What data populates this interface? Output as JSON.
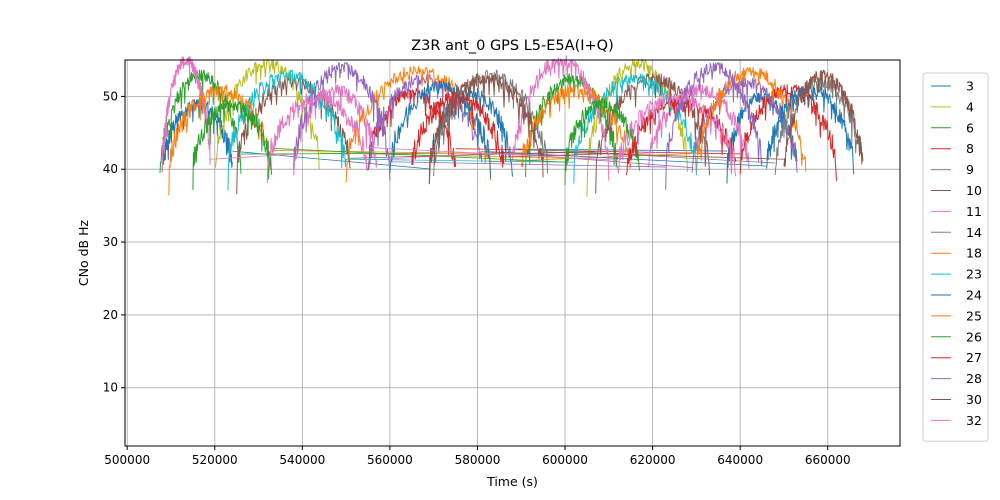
{
  "chart_data": {
    "type": "line",
    "title": "Z3R ant_0 GPS L5-E5A(I+Q)",
    "xlabel": "Time (s)",
    "ylabel": "CNo dB Hz",
    "xlim": [
      499500,
      676500
    ],
    "ylim": [
      2,
      55
    ],
    "xticks": [
      500000,
      520000,
      540000,
      560000,
      580000,
      600000,
      620000,
      640000,
      660000
    ],
    "yticks": [
      10,
      20,
      30,
      40,
      50
    ],
    "grid": true,
    "legend_position": "outside-right",
    "series": [
      {
        "name": "3",
        "color": "#1f77b4",
        "passes": [
          [
            508000,
            524000,
            49
          ],
          [
            569000,
            588000,
            50.5
          ],
          [
            637000,
            653000,
            50
          ]
        ]
      },
      {
        "name": "4",
        "color": "#bcbd22",
        "passes": [
          [
            520000,
            544000,
            54.5
          ],
          [
            605000,
            628000,
            54.5
          ]
        ]
      },
      {
        "name": "6",
        "color": "#2ca02c",
        "passes": [
          [
            507500,
            526000,
            53
          ],
          [
            591000,
            612000,
            52.5
          ]
        ]
      },
      {
        "name": "8",
        "color": "#d62728",
        "passes": [
          [
            555000,
            575000,
            50.5
          ],
          [
            640000,
            662000,
            51
          ]
        ]
      },
      {
        "name": "9",
        "color": "#9467bd",
        "passes": [
          [
            555000,
            581000,
            52.5
          ],
          [
            629000,
            653000,
            52
          ]
        ]
      },
      {
        "name": "10",
        "color": "#8c564b",
        "passes": [
          [
            525000,
            551000,
            52
          ],
          [
            607000,
            633000,
            52.5
          ]
        ]
      },
      {
        "name": "11",
        "color": "#e377c2",
        "passes": [
          [
            508000,
            519000,
            55
          ],
          [
            538000,
            557000,
            51
          ],
          [
            588000,
            610000,
            55
          ],
          [
            619000,
            642000,
            51
          ]
        ]
      },
      {
        "name": "14",
        "color": "#7f7f7f",
        "passes": [
          [
            570000,
            596000,
            53
          ],
          [
            648000,
            668000,
            52
          ]
        ]
      },
      {
        "name": "18",
        "color": "#ff7f0e",
        "passes": [
          [
            550000,
            583000,
            53.5
          ],
          [
            630000,
            655000,
            53.5
          ]
        ]
      },
      {
        "name": "23",
        "color": "#17becf",
        "passes": [
          [
            523000,
            550000,
            53
          ],
          [
            602000,
            630000,
            52.5
          ]
        ]
      },
      {
        "name": "24",
        "color": "#1f77b4",
        "passes": [
          [
            560000,
            583000,
            51.5
          ],
          [
            646000,
            666000,
            51
          ]
        ]
      },
      {
        "name": "25",
        "color": "#ff7f0e",
        "passes": [
          [
            509500,
            533000,
            51
          ],
          [
            590000,
            615000,
            51
          ]
        ]
      },
      {
        "name": "26",
        "color": "#2ca02c",
        "passes": [
          [
            515000,
            533000,
            49
          ],
          [
            600000,
            617000,
            49
          ]
        ]
      },
      {
        "name": "27",
        "color": "#d62728",
        "passes": [
          [
            565000,
            586000,
            50
          ],
          [
            614000,
            639000,
            49.5
          ]
        ]
      },
      {
        "name": "28",
        "color": "#9467bd",
        "passes": [
          [
            538000,
            560000,
            54
          ],
          [
            623000,
            645000,
            54
          ]
        ]
      },
      {
        "name": "30",
        "color": "#8c564b",
        "passes": [
          [
            569000,
            595000,
            52.5
          ],
          [
            650000,
            668000,
            53
          ]
        ]
      },
      {
        "name": "32",
        "color": "#e377c2",
        "passes": [
          [
            532000,
            555000,
            50
          ],
          [
            612000,
            639000,
            50
          ]
        ]
      }
    ]
  }
}
